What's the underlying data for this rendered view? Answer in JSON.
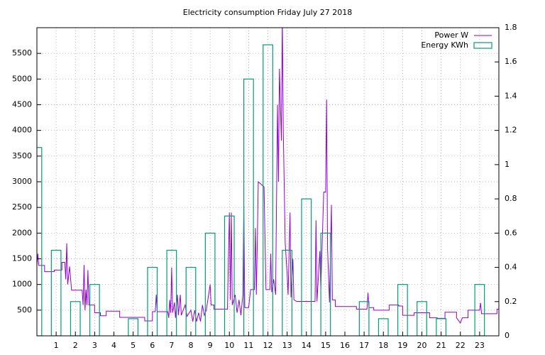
{
  "chart_data": {
    "type": "line",
    "title": "Electricity consumption Friday July 27 2018",
    "xlim": [
      0,
      24
    ],
    "xticks": [
      1,
      2,
      3,
      4,
      5,
      6,
      7,
      8,
      9,
      10,
      11,
      12,
      13,
      14,
      15,
      16,
      17,
      18,
      19,
      20,
      21,
      22,
      23
    ],
    "ylim": [
      0,
      6000
    ],
    "yticks": [
      500,
      1000,
      1500,
      2000,
      2500,
      3000,
      3500,
      4000,
      4500,
      5000,
      5500
    ],
    "y2lim": [
      0,
      1.8
    ],
    "y2ticks": [
      0,
      0.2,
      0.4,
      0.6,
      0.8,
      1,
      1.2,
      1.4,
      1.6,
      1.8
    ],
    "grid": true,
    "legend": "top-right",
    "series": [
      {
        "name": "Power W",
        "color": "#9400d3",
        "type": "line",
        "x": [
          0,
          0.05,
          0.1,
          0.4,
          0.4,
          0.9,
          0.9,
          1.3,
          1.3,
          1.45,
          1.5,
          1.55,
          1.6,
          1.7,
          1.8,
          2.35,
          2.4,
          2.45,
          2.5,
          2.55,
          2.6,
          2.65,
          2.7,
          3.0,
          3.0,
          3.3,
          3.3,
          3.6,
          3.6,
          4.3,
          4.3,
          5.6,
          5.6,
          6.0,
          6.0,
          6.15,
          6.2,
          6.25,
          6.8,
          6.85,
          6.9,
          6.95,
          7.0,
          7.05,
          7.15,
          7.2,
          7.3,
          7.35,
          7.45,
          7.5,
          7.7,
          7.8,
          8.0,
          8.1,
          8.2,
          8.3,
          8.4,
          8.5,
          8.6,
          8.7,
          8.8,
          9.0,
          9.05,
          9.2,
          9.2,
          9.9,
          9.95,
          10.0,
          10.05,
          10.1,
          10.15,
          10.3,
          10.4,
          10.5,
          10.6,
          10.7,
          10.75,
          10.8,
          11.0,
          11.1,
          11.3,
          11.35,
          11.4,
          11.45,
          11.5,
          11.8,
          11.9,
          12.1,
          12.15,
          12.2,
          12.3,
          12.4,
          12.5,
          12.55,
          12.6,
          12.7,
          12.75,
          12.8,
          12.9,
          13.0,
          13.05,
          13.15,
          13.2,
          13.3,
          13.35,
          13.5,
          14.45,
          14.5,
          14.55,
          14.7,
          14.75,
          14.9,
          15.0,
          15.05,
          15.1,
          15.2,
          15.3,
          15.35,
          15.5,
          15.5,
          16.6,
          16.6,
          17.15,
          17.2,
          17.25,
          17.5,
          17.5,
          18.3,
          18.3,
          18.8,
          18.8,
          19.0,
          19.0,
          19.6,
          19.6,
          20.4,
          20.4,
          20.8,
          20.8,
          21.2,
          21.2,
          21.8,
          21.8,
          22.0,
          22.1,
          22.4,
          22.4,
          23.0,
          23.05,
          23.1,
          23.9,
          23.9,
          24
        ],
        "values": [
          1370,
          1600,
          1370,
          1370,
          1250,
          1250,
          1280,
          1280,
          1430,
          1430,
          1100,
          1800,
          1000,
          1350,
          890,
          890,
          600,
          1380,
          500,
          900,
          600,
          1280,
          600,
          600,
          450,
          450,
          390,
          390,
          480,
          480,
          360,
          360,
          290,
          290,
          470,
          470,
          800,
          470,
          470,
          350,
          700,
          450,
          1330,
          450,
          650,
          350,
          800,
          400,
          800,
          400,
          600,
          380,
          500,
          280,
          500,
          280,
          450,
          280,
          600,
          400,
          500,
          1000,
          600,
          600,
          520,
          520,
          1500,
          2400,
          700,
          2400,
          600,
          800,
          450,
          700,
          400,
          800,
          2550,
          550,
          550,
          900,
          900,
          2100,
          800,
          1800,
          3000,
          2900,
          900,
          900,
          1600,
          850,
          1100,
          800,
          4500,
          3000,
          5200,
          3800,
          6200,
          4000,
          1800,
          1200,
          800,
          2400,
          750,
          1500,
          700,
          670,
          670,
          2250,
          670,
          1650,
          900,
          2800,
          2800,
          4600,
          1700,
          650,
          2550,
          700,
          700,
          570,
          570,
          520,
          520,
          840,
          550,
          550,
          500,
          500,
          600,
          600,
          580,
          580,
          400,
          400,
          450,
          450,
          350,
          350,
          340,
          340,
          460,
          460,
          350,
          250,
          350,
          350,
          500,
          500,
          640,
          430,
          430,
          520,
          520
        ]
      },
      {
        "name": "Energy KWh",
        "color": "#009e73",
        "type": "boxes",
        "axis": "y2",
        "x": [
          0,
          1,
          2,
          3,
          4,
          5,
          6,
          7,
          8,
          9,
          10,
          11,
          12,
          13,
          14,
          15,
          16,
          17,
          18,
          19,
          20,
          21,
          22,
          23
        ],
        "values": [
          1.1,
          0.5,
          0.2,
          0.3,
          0,
          0.1,
          0.4,
          0.5,
          0.4,
          0.6,
          0.7,
          1.5,
          1.7,
          0.5,
          0.8,
          0.6,
          0,
          0.2,
          0.1,
          0.3,
          0.2,
          0.1,
          0,
          0.3
        ]
      }
    ]
  }
}
